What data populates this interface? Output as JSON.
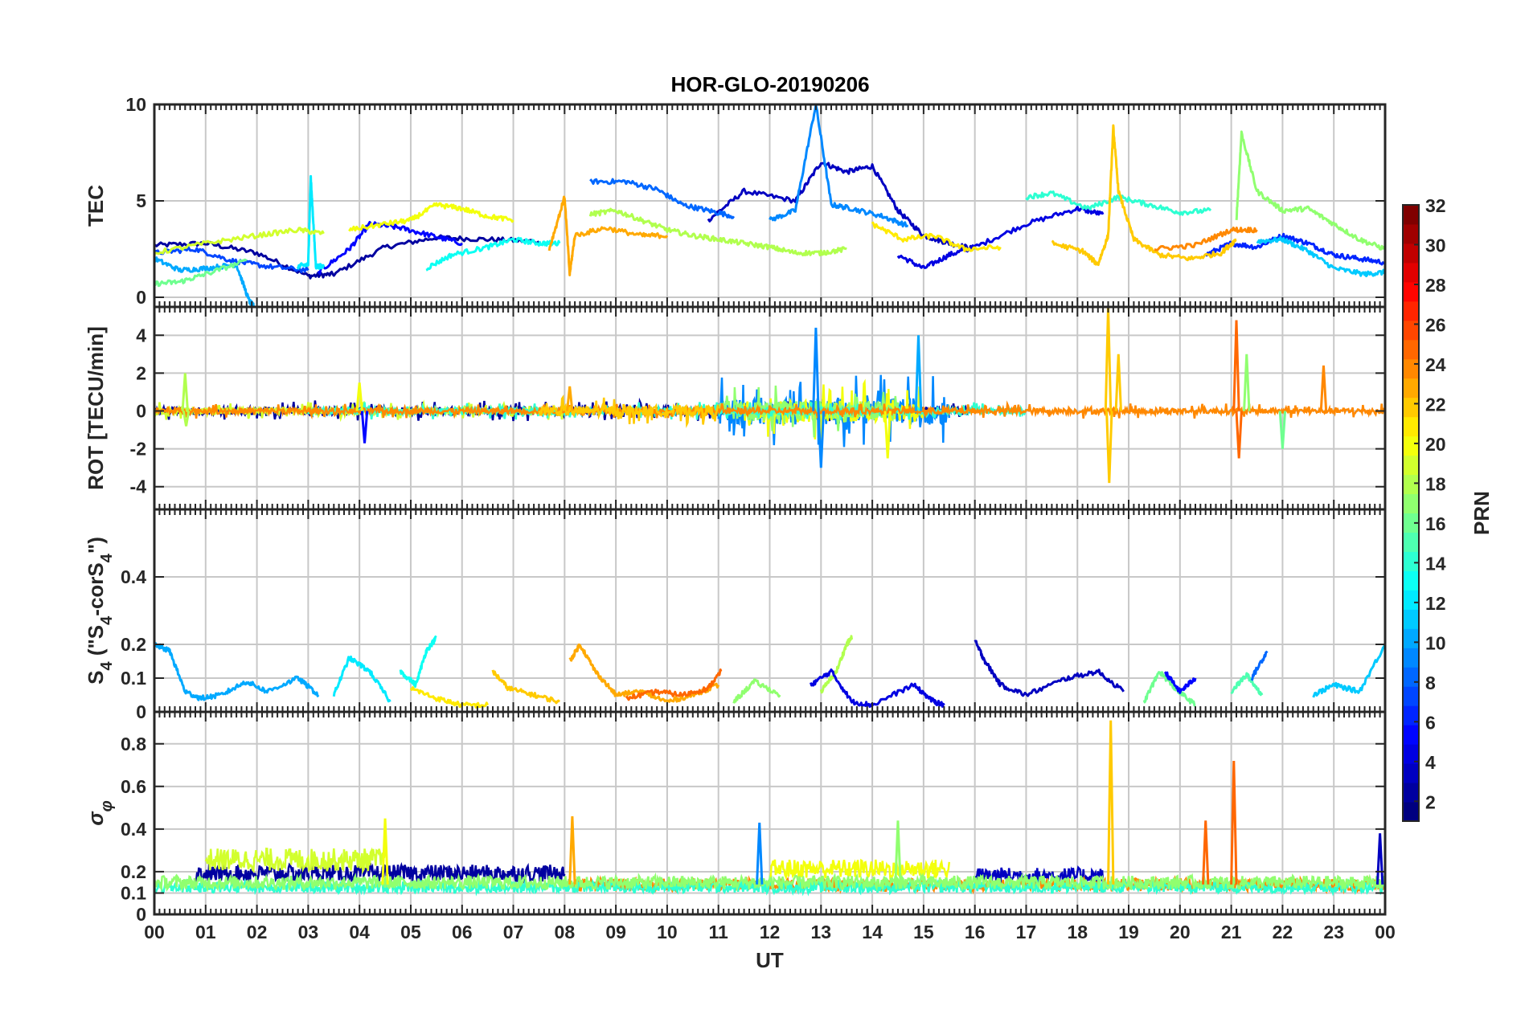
{
  "title": "HOR-GLO-20190206",
  "colors": {
    "grid": "#c8c8c8",
    "axes": "#262626",
    "colormap": "jet"
  },
  "chart_data": [
    {
      "type": "line",
      "panel": "TEC",
      "ylabel": "TEC",
      "ylim": [
        -0.5,
        10
      ],
      "yticks": [
        0,
        5,
        10
      ],
      "ytick_labels": [
        "0",
        "5",
        "10"
      ],
      "xlim": [
        0,
        24
      ],
      "xticks": [
        0,
        1,
        2,
        3,
        4,
        5,
        6,
        7,
        8,
        9,
        10,
        11,
        12,
        13,
        14,
        15,
        16,
        17,
        18,
        19,
        20,
        21,
        22,
        23,
        24
      ],
      "grid": true,
      "series": [
        {
          "prn": 2,
          "x": [
            0,
            1,
            2,
            3,
            3.5,
            4.5,
            5.5,
            6.5,
            7.5
          ],
          "y": [
            2.7,
            2.8,
            2.3,
            1.1,
            1.2,
            2.6,
            3.1,
            3.0,
            2.9
          ]
        },
        {
          "prn": 3,
          "x": [
            10.8,
            11.5,
            12.5,
            13,
            13.5,
            14,
            14.5,
            15,
            15.5,
            16
          ],
          "y": [
            4.0,
            5.5,
            5.0,
            7.0,
            6.5,
            6.8,
            4.5,
            3.2,
            2.8,
            2.5
          ]
        },
        {
          "prn": 4,
          "x": [
            14.5,
            15,
            15.5,
            16,
            17,
            18,
            18.5
          ],
          "y": [
            2.2,
            1.5,
            2.2,
            2.6,
            3.8,
            4.6,
            4.3
          ]
        },
        {
          "prn": 5,
          "x": [
            3.2,
            3.8,
            4.2,
            4.8,
            5.4,
            6.0
          ],
          "y": [
            1.3,
            2.5,
            3.8,
            3.6,
            3.2,
            2.8
          ]
        },
        {
          "prn": 6,
          "x": [
            20.5,
            21,
            21.5,
            22,
            22.5,
            23,
            23.5,
            24
          ],
          "y": [
            2.2,
            2.8,
            2.6,
            3.2,
            2.8,
            2.2,
            2.0,
            1.8
          ]
        },
        {
          "prn": 7,
          "x": [
            0,
            0.8,
            1.5,
            2.2,
            3.0
          ],
          "y": [
            2.3,
            2.5,
            1.9,
            1.6,
            1.4
          ]
        },
        {
          "prn": 8,
          "x": [
            8.5,
            9.2,
            9.8,
            10.3,
            10.8,
            11.3
          ],
          "y": [
            6.0,
            6.0,
            5.6,
            4.8,
            4.5,
            4.2
          ]
        },
        {
          "prn": 9,
          "x": [
            12,
            12.5,
            12.9,
            13.2,
            13.6,
            14.2,
            14.7
          ],
          "y": [
            4.0,
            4.5,
            10.0,
            4.8,
            4.6,
            4.2,
            3.7
          ]
        },
        {
          "prn": 10,
          "x": [
            0,
            0.5,
            1.0,
            1.6,
            1.85,
            1.95
          ],
          "y": [
            2.0,
            1.4,
            1.5,
            1.7,
            -0.2,
            -0.5
          ]
        },
        {
          "prn": 11,
          "x": [
            21.5,
            22,
            22.5,
            23,
            23.6,
            24
          ],
          "y": [
            2.9,
            3.0,
            2.4,
            1.5,
            1.2,
            1.3
          ]
        },
        {
          "prn": 12,
          "x": [
            2.8,
            3.0,
            3.05,
            3.15,
            3.3
          ],
          "y": [
            1.6,
            1.7,
            6.2,
            1.6,
            1.6
          ]
        },
        {
          "prn": 13,
          "x": [
            5.3,
            5.8,
            6.5,
            7.0,
            7.5,
            7.9
          ],
          "y": [
            1.5,
            2.2,
            2.6,
            3.0,
            2.8,
            2.8
          ]
        },
        {
          "prn": 14,
          "x": [
            17,
            17.5,
            18.2,
            18.8,
            19.4,
            20,
            20.6
          ],
          "y": [
            5.2,
            5.4,
            4.6,
            5.2,
            4.8,
            4.4,
            4.5
          ]
        },
        {
          "prn": 16,
          "x": [
            0,
            0.5,
            1,
            1.8
          ],
          "y": [
            0.7,
            0.8,
            1.2,
            1.9
          ]
        },
        {
          "prn": 17,
          "x": [
            21.1,
            21.2,
            21.5,
            22,
            22.5,
            23,
            23.5,
            24
          ],
          "y": [
            4.0,
            8.5,
            5.5,
            4.5,
            4.6,
            3.8,
            3.0,
            2.5
          ]
        },
        {
          "prn": 18,
          "x": [
            8.5,
            9.0,
            9.5,
            10,
            10.5,
            11,
            11.5,
            12,
            12.5,
            13,
            13.5
          ],
          "y": [
            4.3,
            4.5,
            4.0,
            3.5,
            3.2,
            3.0,
            2.8,
            2.6,
            2.3,
            2.3,
            2.5
          ]
        },
        {
          "prn": 19,
          "x": [
            0,
            1,
            2,
            2.8,
            3.3
          ],
          "y": [
            2.3,
            2.8,
            3.2,
            3.5,
            3.3
          ]
        },
        {
          "prn": 20,
          "x": [
            3.8,
            4.5,
            5.0,
            5.5,
            6.0,
            6.5,
            7.0
          ],
          "y": [
            3.5,
            3.8,
            4.0,
            4.8,
            4.6,
            4.2,
            4.0
          ]
        },
        {
          "prn": 21,
          "x": [
            14,
            14.6,
            15.2,
            15.8,
            16.5
          ],
          "y": [
            3.8,
            3.0,
            3.2,
            2.5,
            2.6
          ]
        },
        {
          "prn": 22,
          "x": [
            17.5,
            18.1,
            18.4,
            18.6,
            18.7,
            18.8,
            19.1,
            19.6,
            20.2,
            20.8,
            21.1
          ],
          "y": [
            2.8,
            2.4,
            1.7,
            3.2,
            8.8,
            5.5,
            3.0,
            2.2,
            2.0,
            2.3,
            3.0
          ]
        },
        {
          "prn": 23,
          "x": [
            7.7,
            8.0,
            8.1,
            8.2,
            8.8,
            9.5,
            10.0
          ],
          "y": [
            2.5,
            5.2,
            1.2,
            3.2,
            3.6,
            3.2,
            3.2
          ]
        },
        {
          "prn": 24,
          "x": [
            19.5,
            20.3,
            21,
            21.5
          ],
          "y": [
            2.5,
            2.7,
            3.5,
            3.5
          ]
        }
      ]
    },
    {
      "type": "line",
      "panel": "ROT",
      "ylabel": "ROT [TECU/min]",
      "ylim": [
        -5.2,
        5.5
      ],
      "yticks": [
        -4,
        -2,
        0,
        2,
        4
      ],
      "ytick_labels": [
        "-4",
        "-2",
        "0",
        "2",
        "4"
      ],
      "xlim": [
        0,
        24
      ],
      "grid": true,
      "base_series": [
        {
          "prn": 2,
          "x_range": [
            0,
            16
          ],
          "amplitude": 0.35
        },
        {
          "prn": 9,
          "x_range": [
            11,
            15.5
          ],
          "amplitude": 1.2
        },
        {
          "prn": 19,
          "x_range": [
            0,
            8
          ],
          "amplitude": 0.3
        },
        {
          "prn": 20,
          "x_range": [
            11.5,
            15
          ],
          "amplitude": 1.0
        },
        {
          "prn": 17,
          "x_range": [
            11,
            14.5
          ],
          "amplitude": 0.9
        },
        {
          "prn": 14,
          "x_range": [
            3,
            17
          ],
          "amplitude": 0.3
        },
        {
          "prn": 24,
          "x_range": [
            0,
            24
          ],
          "amplitude": 0.25
        },
        {
          "prn": 22,
          "x_range": [
            7.5,
            11
          ],
          "amplitude": 0.45
        }
      ],
      "spikes": [
        {
          "prn": 18,
          "x": 0.6,
          "y": 2.0
        },
        {
          "prn": 18,
          "x": 0.62,
          "y": -0.8
        },
        {
          "prn": 5,
          "x": 4.1,
          "y": -1.7
        },
        {
          "prn": 20,
          "x": 4.0,
          "y": 1.5
        },
        {
          "prn": 9,
          "x": 12.9,
          "y": 4.4
        },
        {
          "prn": 9,
          "x": 13.0,
          "y": -3.0
        },
        {
          "prn": 10,
          "x": 14.9,
          "y": 4.0
        },
        {
          "prn": 20,
          "x": 14.3,
          "y": -2.5
        },
        {
          "prn": 22,
          "x": 18.6,
          "y": 5.5
        },
        {
          "prn": 22,
          "x": 18.62,
          "y": -3.8
        },
        {
          "prn": 22,
          "x": 18.8,
          "y": 3.0
        },
        {
          "prn": 25,
          "x": 21.1,
          "y": 4.8
        },
        {
          "prn": 25,
          "x": 21.15,
          "y": -2.5
        },
        {
          "prn": 17,
          "x": 21.3,
          "y": 3.0
        },
        {
          "prn": 24,
          "x": 22.8,
          "y": 2.4
        },
        {
          "prn": 23,
          "x": 8.1,
          "y": 1.3
        },
        {
          "prn": 16,
          "x": 22.0,
          "y": -2.0
        }
      ]
    },
    {
      "type": "line",
      "panel": "S4",
      "ylabel": "S_4 (\"S_4-corS_4\")",
      "ylim": [
        0,
        0.6
      ],
      "yticks": [
        0,
        0.1,
        0.2,
        0.4
      ],
      "ytick_labels": [
        "0",
        "0.1",
        "0.2",
        "0.4"
      ],
      "xlim": [
        0,
        24
      ],
      "grid": true,
      "series": [
        {
          "prn": 10,
          "x": [
            0,
            0.3,
            0.6,
            0.9,
            1.3,
            1.8,
            2.2,
            2.8,
            3.2
          ],
          "y": [
            0.2,
            0.18,
            0.06,
            0.04,
            0.05,
            0.09,
            0.06,
            0.1,
            0.05
          ]
        },
        {
          "prn": 12,
          "x": [
            3.5,
            3.8,
            4.2,
            4.6
          ],
          "y": [
            0.05,
            0.16,
            0.12,
            0.03
          ]
        },
        {
          "prn": 13,
          "x": [
            4.8,
            5.1,
            5.3,
            5.5
          ],
          "y": [
            0.12,
            0.08,
            0.18,
            0.22
          ]
        },
        {
          "prn": 21,
          "x": [
            5.0,
            5.5,
            6.0,
            6.5
          ],
          "y": [
            0.07,
            0.04,
            0.02,
            0.02
          ]
        },
        {
          "prn": 22,
          "x": [
            6.6,
            6.9,
            7.4,
            7.9
          ],
          "y": [
            0.12,
            0.07,
            0.05,
            0.03
          ]
        },
        {
          "prn": 23,
          "x": [
            8.1,
            8.3,
            8.6,
            9.0,
            9.5,
            10,
            10.5,
            11
          ],
          "y": [
            0.15,
            0.2,
            0.12,
            0.05,
            0.06,
            0.03,
            0.05,
            0.08
          ]
        },
        {
          "prn": 25,
          "x": [
            9.2,
            9.8,
            10.3,
            10.8,
            11.05
          ],
          "y": [
            0.04,
            0.06,
            0.05,
            0.07,
            0.12
          ]
        },
        {
          "prn": 17,
          "x": [
            11.3,
            11.7,
            12.2
          ],
          "y": [
            0.03,
            0.09,
            0.05
          ]
        },
        {
          "prn": 18,
          "x": [
            13.0,
            13.3,
            13.5,
            13.6
          ],
          "y": [
            0.06,
            0.12,
            0.2,
            0.22
          ]
        },
        {
          "prn": 4,
          "x": [
            12.8,
            13.2,
            13.6,
            14.0,
            14.8,
            15.2,
            15.4
          ],
          "y": [
            0.08,
            0.12,
            0.03,
            0.02,
            0.08,
            0.03,
            0.02
          ]
        },
        {
          "prn": 3,
          "x": [
            16.0,
            16.2,
            16.5,
            17,
            17.8,
            18.4,
            18.9
          ],
          "y": [
            0.21,
            0.15,
            0.08,
            0.05,
            0.1,
            0.12,
            0.06
          ]
        },
        {
          "prn": 16,
          "x": [
            19.3,
            19.6,
            19.9,
            20.3
          ],
          "y": [
            0.03,
            0.12,
            0.07,
            0.02
          ]
        },
        {
          "prn": 5,
          "x": [
            19.7,
            20.0,
            20.3
          ],
          "y": [
            0.12,
            0.06,
            0.1
          ]
        },
        {
          "prn": 15,
          "x": [
            21.0,
            21.3,
            21.6
          ],
          "y": [
            0.06,
            0.11,
            0.05
          ]
        },
        {
          "prn": 8,
          "x": [
            21.4,
            21.7
          ],
          "y": [
            0.1,
            0.18
          ]
        },
        {
          "prn": 11,
          "x": [
            22.6,
            23,
            23.5,
            24
          ],
          "y": [
            0.05,
            0.08,
            0.06,
            0.2
          ]
        }
      ]
    },
    {
      "type": "line",
      "panel": "sigma_phi",
      "ylabel": "σ_φ",
      "ylim": [
        0,
        0.95
      ],
      "yticks": [
        0,
        0.1,
        0.2,
        0.4,
        0.6,
        0.8
      ],
      "ytick_labels": [
        "0",
        "0.1",
        "0.2",
        "0.4",
        "0.6",
        "0.8"
      ],
      "xlim": [
        0,
        24
      ],
      "xlabel": "UT",
      "xtick_labels": [
        "00",
        "01",
        "02",
        "03",
        "04",
        "05",
        "06",
        "07",
        "08",
        "09",
        "10",
        "11",
        "12",
        "13",
        "14",
        "15",
        "16",
        "17",
        "18",
        "19",
        "20",
        "21",
        "22",
        "23",
        "00"
      ],
      "grid": true,
      "base_series": [
        {
          "prn": 2,
          "x_range": [
            0.8,
            8
          ],
          "level": 0.18
        },
        {
          "prn": 19,
          "x_range": [
            1,
            4.5
          ],
          "level": 0.24
        },
        {
          "prn": 20,
          "x_range": [
            12,
            15.5
          ],
          "level": 0.2
        },
        {
          "prn": 3,
          "x_range": [
            16,
            18.5
          ],
          "level": 0.17
        },
        {
          "prn": 24,
          "x_range": [
            8,
            24
          ],
          "level": 0.13
        },
        {
          "prn": 14,
          "x_range": [
            0,
            24
          ],
          "level": 0.12
        },
        {
          "prn": 17,
          "x_range": [
            0,
            24
          ],
          "level": 0.14
        }
      ],
      "spikes": [
        {
          "prn": 20,
          "x": 4.5,
          "y": 0.45
        },
        {
          "prn": 23,
          "x": 8.15,
          "y": 0.46
        },
        {
          "prn": 9,
          "x": 11.8,
          "y": 0.43
        },
        {
          "prn": 22,
          "x": 18.65,
          "y": 0.91
        },
        {
          "prn": 25,
          "x": 20.5,
          "y": 0.44
        },
        {
          "prn": 25,
          "x": 21.05,
          "y": 0.72
        },
        {
          "prn": 3,
          "x": 23.9,
          "y": 0.38
        },
        {
          "prn": 17,
          "x": 14.5,
          "y": 0.44
        }
      ]
    }
  ],
  "colorbar": {
    "label": "PRN",
    "min": 1,
    "max": 32,
    "ticks": [
      2,
      4,
      6,
      8,
      10,
      12,
      14,
      16,
      18,
      20,
      22,
      24,
      26,
      28,
      30,
      32
    ],
    "tick_labels": [
      "2",
      "4",
      "6",
      "8",
      "10",
      "12",
      "14",
      "16",
      "18",
      "20",
      "22",
      "24",
      "26",
      "28",
      "30",
      "32"
    ],
    "placement": "right"
  }
}
